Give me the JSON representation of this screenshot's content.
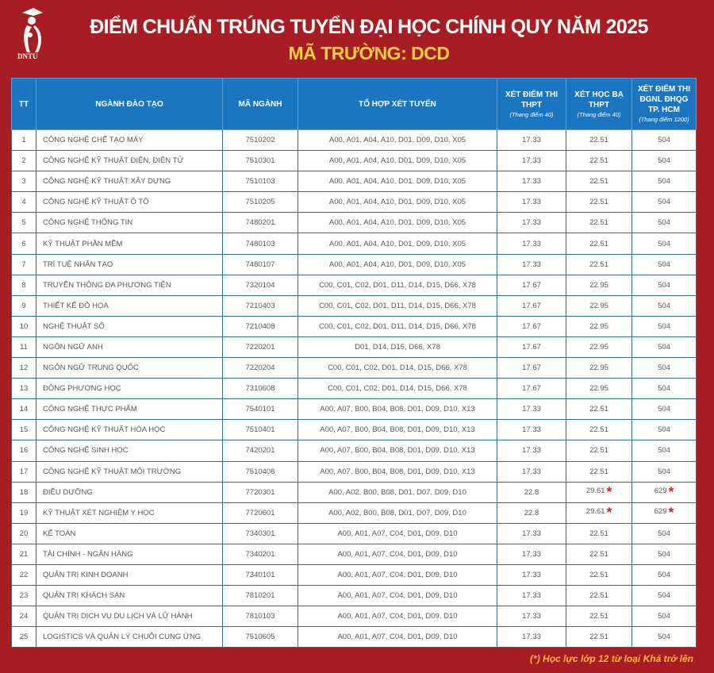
{
  "header": {
    "logo_text": "DNTU",
    "title": "ĐIỂM CHUẨN TRÚNG TUYỂN  ĐẠI HỌC CHÍNH QUY NĂM 2025",
    "subtitle": "MÃ TRƯỜNG: DCD"
  },
  "columns": [
    {
      "label": "TT",
      "sub": ""
    },
    {
      "label": "NGÀNH ĐÀO TẠO",
      "sub": ""
    },
    {
      "label": "MÃ NGÀNH",
      "sub": ""
    },
    {
      "label": "TỔ HỢP XÉT TUYỂN",
      "sub": ""
    },
    {
      "label": "XÉT ĐIỂM THI THPT",
      "sub": "(Thang điểm 40)"
    },
    {
      "label": "XÉT HỌC BẠ THPT",
      "sub": "(Thang điểm 40)"
    },
    {
      "label": "XÉT ĐIỂM THI ĐGNL ĐHQG TP. HCM",
      "sub": "(Thang điểm 1200)"
    }
  ],
  "rows": [
    {
      "tt": "1",
      "name": "CÔNG NGHỆ CHẾ TẠO MÁY",
      "code": "7510202",
      "combos": "A00, A01, A04, A10, D01, D09, D10, X05",
      "thpt": "17.33",
      "hocba": "22.51",
      "dgnl": "504"
    },
    {
      "tt": "2",
      "name": "CÔNG NGHỆ KỸ THUẬT ĐIỆN, ĐIỆN TỬ",
      "code": "7510301",
      "combos": "A00, A01, A04, A10, D01, D09, D10, X05",
      "thpt": "17.33",
      "hocba": "22.51",
      "dgnl": "504"
    },
    {
      "tt": "3",
      "name": "CÔNG NGHỆ KỸ THUẬT XÂY DỰNG",
      "code": "7510103",
      "combos": "A00, A01, A04, A10, D01, D09, D10, X05",
      "thpt": "17.33",
      "hocba": "22.51",
      "dgnl": "504"
    },
    {
      "tt": "4",
      "name": "CÔNG NGHỆ KỸ THUẬT Ô TÔ",
      "code": "7510205",
      "combos": "A00, A01, A04, A10, D01, D09, D10, X05",
      "thpt": "17.33",
      "hocba": "22.51",
      "dgnl": "504"
    },
    {
      "tt": "5",
      "name": "CÔNG NGHỆ THÔNG TIN",
      "code": "7480201",
      "combos": "A00, A01, A04, A10, D01, D09, D10, X05",
      "thpt": "17.33",
      "hocba": "22.51",
      "dgnl": "504"
    },
    {
      "tt": "6",
      "name": "KỸ THUẬT PHẦN MỀM",
      "code": "7480103",
      "combos": "A00, A01, A04, A10, D01, D09, D10, X05",
      "thpt": "17.33",
      "hocba": "22.51",
      "dgnl": "504"
    },
    {
      "tt": "7",
      "name": "TRÍ TUỆ NHÂN TẠO",
      "code": "7480107",
      "combos": "A00, A01, A04, A10, D01, D09, D10, X05",
      "thpt": "17.33",
      "hocba": "22.51",
      "dgnl": "504"
    },
    {
      "tt": "8",
      "name": "TRUYỀN THÔNG ĐA PHƯƠNG TIỆN",
      "code": "7320104",
      "combos": "C00, C01, C02, D01, D11, D14, D15, D66, X78",
      "thpt": "17.67",
      "hocba": "22.95",
      "dgnl": "504"
    },
    {
      "tt": "9",
      "name": "THIẾT KẾ ĐỒ HỌA",
      "code": "7210403",
      "combos": "C00, C01, C02, D01, D11, D14, D15, D66, X78",
      "thpt": "17.67",
      "hocba": "22.95",
      "dgnl": "504"
    },
    {
      "tt": "10",
      "name": "NGHỆ THUẬT SỐ",
      "code": "7210408",
      "combos": "C00, C01, C02, D01, D11, D14, D15, D66, X78",
      "thpt": "17.67",
      "hocba": "22.95",
      "dgnl": "504"
    },
    {
      "tt": "11",
      "name": "NGÔN NGỮ ANH",
      "code": "7220201",
      "combos": "D01, D14, D15, D66, X78",
      "thpt": "17.67",
      "hocba": "22.95",
      "dgnl": "504"
    },
    {
      "tt": "12",
      "name": "NGÔN NGỮ TRUNG QUỐC",
      "code": "7220204",
      "combos": "C00, C01, C02, D01, D14, D15, D66, X78",
      "thpt": "17.67",
      "hocba": "22.95",
      "dgnl": "504"
    },
    {
      "tt": "13",
      "name": "ĐÔNG PHƯƠNG HỌC",
      "code": "7310608",
      "combos": "C00, C01, C02, D01, D14, D15, D66, X78",
      "thpt": "17.67",
      "hocba": "22.95",
      "dgnl": "504"
    },
    {
      "tt": "14",
      "name": "CÔNG NGHỆ THỰC PHẨM",
      "code": "7540101",
      "combos": "A00, A07, B00, B04, B08, D01, D09, D10, X13",
      "thpt": "17.33",
      "hocba": "22.51",
      "dgnl": "504"
    },
    {
      "tt": "15",
      "name": "CÔNG NGHỆ KỸ THUẬT HÓA HỌC",
      "code": "7510401",
      "combos": "A00, A07, B00, B04, B08, D01, D09, D10, X13",
      "thpt": "17.33",
      "hocba": "22.51",
      "dgnl": "504"
    },
    {
      "tt": "16",
      "name": "CÔNG NGHỆ SINH HỌC",
      "code": "7420201",
      "combos": "A00, A07, B00, B04, B08, D01, D09, D10, X13",
      "thpt": "17.33",
      "hocba": "22.51",
      "dgnl": "504"
    },
    {
      "tt": "17",
      "name": "CÔNG NGHỆ KỸ THUẬT MÔI TRƯỜNG",
      "code": "7510406",
      "combos": "A00, A07, B00, B04, B08, D01, D09, D10, X13",
      "thpt": "17.33",
      "hocba": "22.51",
      "dgnl": "504"
    },
    {
      "tt": "18",
      "name": "ĐIỀU DƯỠNG",
      "code": "7720301",
      "combos": "A00, A02, B00, B08, D01, D07, D09, D10",
      "thpt": "22.8",
      "hocba": "29.61",
      "dgnl": "629",
      "starred": true
    },
    {
      "tt": "19",
      "name": "KỸ THUẬT XÉT NGHIỆM Y HỌC",
      "code": "7720601",
      "combos": "A00, A02, B00, B08, D01, D07, D09, D10",
      "thpt": "22.8",
      "hocba": "29.61",
      "dgnl": "629",
      "starred": true
    },
    {
      "tt": "20",
      "name": "KẾ TOÁN",
      "code": "7340301",
      "combos": "A00, A01, A07, C04, D01, D09, D10",
      "thpt": "17.33",
      "hocba": "22.51",
      "dgnl": "504"
    },
    {
      "tt": "21",
      "name": "TÀI CHÍNH - NGÂN HÀNG",
      "code": "7340201",
      "combos": "A00, A01, A07, C04, D01, D09, D10",
      "thpt": "17.33",
      "hocba": "22.51",
      "dgnl": "504"
    },
    {
      "tt": "22",
      "name": "QUẢN TRỊ KINH DOANH",
      "code": "7340101",
      "combos": "A00, A01, A07, C04, D01, D09, D10",
      "thpt": "17.33",
      "hocba": "22.51",
      "dgnl": "504"
    },
    {
      "tt": "23",
      "name": "QUẢN TRỊ KHÁCH SẠN",
      "code": "7810201",
      "combos": "A00, A01, A07, C04, D01, D09, D10",
      "thpt": "17.33",
      "hocba": "22.51",
      "dgnl": "504"
    },
    {
      "tt": "24",
      "name": "QUẢN TRỊ DỊCH VỤ DU LỊCH VÀ LỮ HÀNH",
      "code": "7810103",
      "combos": "A00, A01, A07, C04, D01, D09, D10",
      "thpt": "17.33",
      "hocba": "22.51",
      "dgnl": "504"
    },
    {
      "tt": "25",
      "name": "LOGISTICS VÀ QUẢN LÝ CHUỖI CUNG ỨNG",
      "code": "7510605",
      "combos": "A00, A01, A07, C04, D01, D09, D10",
      "thpt": "17.33",
      "hocba": "22.51",
      "dgnl": "504"
    }
  ],
  "star_symbol": "*",
  "footnote": "(*)  Học lực lớp 12 từ loại Khá trở lên",
  "colors": {
    "background": "#a71d23",
    "header": "#1b76c2",
    "subtitle": "#f7cf3e",
    "star": "#e0141c",
    "footnote": "#f7b93a"
  }
}
